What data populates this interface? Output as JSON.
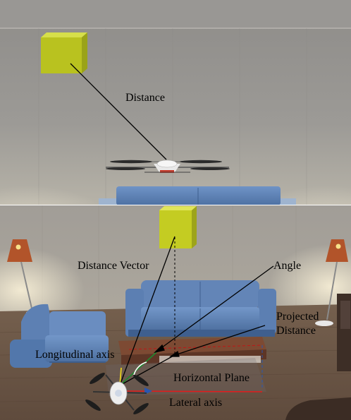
{
  "labels": {
    "distance": "Distance",
    "distance_vector": "Distance Vector",
    "angle": "Angle",
    "projected_distance_line1": "Projected",
    "projected_distance_line2": "Distance",
    "longitudinal_axis": "Longitudinal axis",
    "horizontal_plane": "Horizontal Plane",
    "lateral_axis": "Lateral axis"
  },
  "colors": {
    "wall": "#9a9894",
    "target_cube": "#b8c21e",
    "sofa": "#5b82b8",
    "floor": "#6e5848",
    "lamp_shade": "#b2542a",
    "vector_line": "#000000",
    "lateral_axis": "#e11c1c",
    "longitudinal_axis": "#22a33a",
    "vertical_axis": "#f0d020"
  }
}
